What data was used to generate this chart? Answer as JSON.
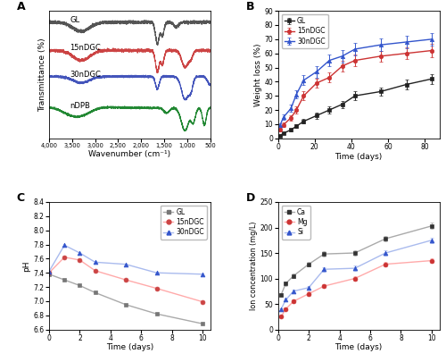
{
  "panel_B": {
    "GL": {
      "x": [
        1,
        3,
        7,
        10,
        14,
        21,
        28,
        35,
        42,
        56,
        70,
        84
      ],
      "y": [
        2.0,
        3.5,
        6.0,
        8.5,
        12.0,
        16.0,
        20.0,
        24.0,
        30.0,
        33.0,
        38.0,
        42.0
      ],
      "yerr": [
        0.5,
        0.7,
        1.0,
        1.2,
        1.5,
        2.0,
        2.5,
        2.5,
        3.0,
        3.0,
        3.5,
        3.5
      ],
      "color": "#222222",
      "marker": "s",
      "label": "GL"
    },
    "15nDGC": {
      "x": [
        1,
        3,
        7,
        10,
        14,
        21,
        28,
        35,
        42,
        56,
        70,
        84
      ],
      "y": [
        6.0,
        9.5,
        14.5,
        20.0,
        30.0,
        39.0,
        43.0,
        51.0,
        55.0,
        58.0,
        60.0,
        62.0
      ],
      "yerr": [
        1.0,
        1.5,
        2.0,
        2.5,
        3.0,
        3.0,
        3.5,
        4.0,
        4.0,
        4.0,
        4.0,
        4.5
      ],
      "color": "#cc3333",
      "marker": "o",
      "label": "15nDGC"
    },
    "30nDGC": {
      "x": [
        1,
        3,
        7,
        10,
        14,
        21,
        28,
        35,
        42,
        56,
        70,
        84
      ],
      "y": [
        9.0,
        15.0,
        21.0,
        31.0,
        41.0,
        47.0,
        55.0,
        58.0,
        63.0,
        66.0,
        68.0,
        70.0
      ],
      "yerr": [
        1.5,
        2.0,
        2.5,
        3.0,
        3.5,
        4.0,
        4.0,
        4.5,
        4.5,
        4.5,
        4.5,
        4.5
      ],
      "color": "#3355cc",
      "marker": "^",
      "label": "30nDGC"
    },
    "xlabel": "Time (days)",
    "ylabel": "Weight loss (%)",
    "ylim": [
      0,
      90
    ],
    "yticks": [
      0,
      10,
      20,
      30,
      40,
      50,
      60,
      70,
      80,
      90
    ],
    "xlim": [
      0,
      88
    ]
  },
  "panel_C": {
    "GL": {
      "x": [
        0,
        1,
        2,
        3,
        5,
        7,
        10
      ],
      "y": [
        7.38,
        7.3,
        7.22,
        7.12,
        6.95,
        6.82,
        6.68
      ],
      "color": "#777777",
      "line_color": "#aaaaaa",
      "marker": "s",
      "label": "GL"
    },
    "15nDGC": {
      "x": [
        0,
        1,
        2,
        3,
        5,
        7,
        10
      ],
      "y": [
        7.4,
        7.62,
        7.58,
        7.43,
        7.3,
        7.18,
        6.99
      ],
      "color": "#cc4444",
      "line_color": "#ffaaaa",
      "marker": "o",
      "label": "15nDGC"
    },
    "30nDGC": {
      "x": [
        0,
        1,
        2,
        3,
        5,
        7,
        10
      ],
      "y": [
        7.42,
        7.79,
        7.68,
        7.55,
        7.52,
        7.4,
        7.38
      ],
      "color": "#3355cc",
      "line_color": "#aabbee",
      "marker": "^",
      "label": "30nDGC"
    },
    "xlabel": "Time (days)",
    "ylabel": "pH",
    "ylim": [
      6.6,
      8.4
    ],
    "yticks": [
      6.6,
      6.8,
      7.0,
      7.2,
      7.4,
      7.6,
      7.8,
      8.0,
      8.2,
      8.4
    ],
    "xticks": [
      0,
      2,
      4,
      6,
      8,
      10
    ],
    "xlim": [
      0,
      10.5
    ]
  },
  "panel_D": {
    "Ca": {
      "x": [
        0.2,
        0.5,
        1,
        2,
        3,
        5,
        7,
        10
      ],
      "y": [
        68,
        90,
        105,
        128,
        148,
        150,
        178,
        203
      ],
      "yerr": [
        3,
        4,
        4,
        5,
        5,
        5,
        6,
        6
      ],
      "color": "#333333",
      "line_color": "#aaaaaa",
      "marker": "s",
      "label": "Ca"
    },
    "Mg": {
      "x": [
        0.2,
        0.5,
        1,
        2,
        3,
        5,
        7,
        10
      ],
      "y": [
        25,
        40,
        55,
        70,
        85,
        100,
        128,
        135
      ],
      "yerr": [
        2,
        3,
        3,
        4,
        4,
        5,
        5,
        5
      ],
      "color": "#cc3333",
      "line_color": "#ffaaaa",
      "marker": "o",
      "label": "Mg"
    },
    "Si": {
      "x": [
        0.2,
        0.5,
        1,
        2,
        3,
        5,
        7,
        10
      ],
      "y": [
        40,
        58,
        75,
        82,
        118,
        120,
        150,
        175
      ],
      "yerr": [
        2,
        3,
        3,
        4,
        4,
        5,
        5,
        5
      ],
      "color": "#3355cc",
      "line_color": "#aabbee",
      "marker": "^",
      "label": "Si"
    },
    "xlabel": "Time (days)",
    "ylabel": "Ion concentration (mg/L)",
    "ylim": [
      0,
      250
    ],
    "yticks": [
      0,
      50,
      100,
      150,
      200,
      250
    ],
    "xticks": [
      0,
      2,
      4,
      6,
      8,
      10
    ],
    "xlim": [
      0,
      10.5
    ]
  },
  "ftir": {
    "xlabel": "Wavenumber (cm⁻¹)",
    "ylabel": "Transmittance (%)",
    "labels": [
      "GL",
      "15nDGC",
      "30nDGC",
      "nDPB"
    ],
    "colors": [
      "#555555",
      "#cc4444",
      "#4455bb",
      "#228833"
    ]
  }
}
